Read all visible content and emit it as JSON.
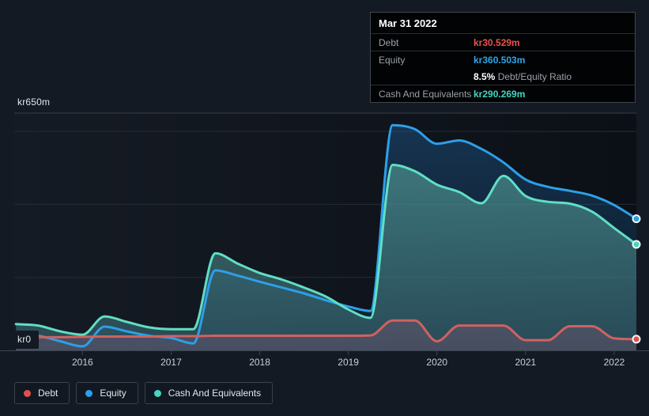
{
  "tooltip": {
    "date": "Mar 31 2022",
    "debt_label": "Debt",
    "debt_value": "kr30.529m",
    "equity_label": "Equity",
    "equity_value": "kr360.503m",
    "ratio_value": "8.5%",
    "ratio_label": "Debt/Equity Ratio",
    "cash_label": "Cash And Equivalents",
    "cash_value": "kr290.269m"
  },
  "axis": {
    "y_max_label": "kr650m",
    "y_min_label": "kr0"
  },
  "legend": {
    "debt": "Debt",
    "equity": "Equity",
    "cash": "Cash And Equivalents"
  },
  "colors": {
    "debt_marker": "#e0504f",
    "debt_line": "#cf6260",
    "equity_line": "#2d9fe8",
    "cash_line": "#5fdfc5",
    "cash_marker": "#45d5c0",
    "grid_major": "#343d4a",
    "grid_minor": "#242c38",
    "axis_line": "#3d4550",
    "tick_text": "#c9ced6"
  },
  "chart_data": {
    "type": "area",
    "currency_prefix": "kr",
    "value_suffix": "m",
    "ylim": [
      0,
      650
    ],
    "gridline_values": [
      650,
      600,
      400,
      200
    ],
    "x_ticks": [
      2016,
      2017,
      2018,
      2019,
      2020,
      2021,
      2022
    ],
    "x_domain": [
      2015.23,
      2022.25
    ],
    "last_point_date": "Mar 31 2022",
    "x": [
      2015.25,
      2015.5,
      2015.75,
      2016.0,
      2016.25,
      2016.5,
      2016.75,
      2017.0,
      2017.25,
      2017.5,
      2017.75,
      2018.0,
      2018.25,
      2018.5,
      2018.75,
      2019.0,
      2019.25,
      2019.5,
      2019.75,
      2020.0,
      2020.25,
      2020.5,
      2020.75,
      2021.0,
      2021.25,
      2021.5,
      2021.75,
      2022.0,
      2022.25
    ],
    "series": [
      {
        "name": "Equity",
        "values": [
          45,
          40,
          25,
          11,
          65,
          52,
          40,
          34,
          19,
          219,
          205,
          188,
          172,
          156,
          137,
          120,
          108,
          617,
          606,
          566,
          575,
          552,
          515,
          468,
          448,
          437,
          424,
          398,
          360.503
        ]
      },
      {
        "name": "Cash And Equivalents",
        "values": [
          72,
          68,
          52,
          43,
          93,
          78,
          63,
          58,
          58,
          266,
          238,
          212,
          194,
          172,
          147,
          112,
          89,
          508,
          491,
          454,
          434,
          403,
          478,
          423,
          407,
          402,
          380,
          335,
          290.269
        ]
      },
      {
        "name": "Debt",
        "values": [
          36,
          36,
          36,
          37,
          38,
          38,
          38,
          39,
          39,
          40,
          40,
          40,
          40,
          40,
          40,
          40,
          41,
          82,
          82,
          25,
          68,
          68,
          68,
          28,
          28,
          66,
          66,
          33,
          30.529
        ]
      }
    ]
  }
}
